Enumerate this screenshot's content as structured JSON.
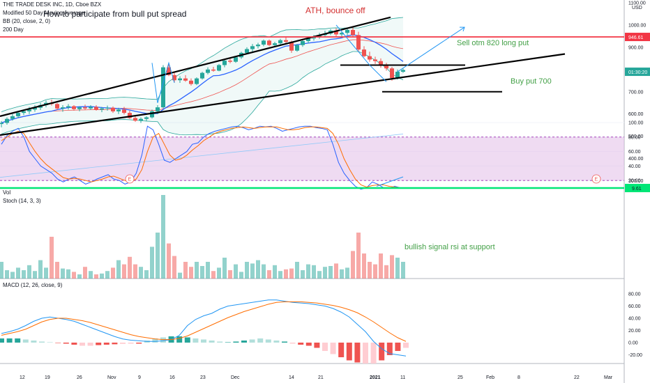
{
  "header": {
    "symbol": "THE TRADE DESK INC, 1D, Cboe BZX",
    "indicators": [
      "Modified 50 Day Moving Average",
      "BB (20, close, 2, 0)",
      "200 Day"
    ],
    "idea_title": "How to participate from bull put spread"
  },
  "axis": {
    "price_ticks": [
      "1100.00",
      "1000.00",
      "900.00",
      "800.00",
      "700.00",
      "600.00",
      "500.00",
      "400.00",
      "300.00"
    ],
    "currency": "USD",
    "last_price_label": "946.61",
    "countdown_label": "01:30:20",
    "stoch_ticks": [
      "100.00",
      "80.00",
      "60.00",
      "40.00",
      "20.00"
    ],
    "stoch_value_label": "9.61",
    "macd_ticks": [
      "80.00",
      "60.00",
      "40.00",
      "20.00",
      "0.00",
      "-20.00"
    ],
    "date_ticks": [
      "12",
      "19",
      "26",
      "Nov",
      "9",
      "16",
      "23",
      "Dec",
      "14",
      "21",
      "2021",
      "11",
      "25",
      "Feb",
      "8",
      "22",
      "Mar"
    ]
  },
  "panes": {
    "vol_label": "Vol",
    "stoch_label": "Stoch (14, 3, 3)",
    "macd_label": "MACD (12, 26, close, 9)"
  },
  "annotations": {
    "ath": "ATH, bounce off",
    "sell": "Sell otm 820 long put",
    "buy": "Buy put 700",
    "bullish": "bullish signal rsi at support",
    "earnings_marker": "E"
  },
  "colors": {
    "up": "#26a69a",
    "down": "#ef5350",
    "ath_text": "#d32f2f",
    "note_green": "#43a047",
    "resistance": "#f23645",
    "stoch_band": "#e1bee7",
    "support_green": "#00e676",
    "projection_blue": "#2196f3"
  },
  "chart_data": {
    "type": "candlestick",
    "symbol": "TTD",
    "interval": "1D",
    "price_axis": {
      "ylim": [
        270,
        1110
      ],
      "ticks": [
        300,
        400,
        500,
        600,
        700,
        800,
        900,
        1000,
        1100
      ]
    },
    "candles": [
      [
        555,
        568,
        540,
        560
      ],
      [
        560,
        585,
        552,
        578
      ],
      [
        578,
        600,
        570,
        590
      ],
      [
        590,
        612,
        582,
        605
      ],
      [
        605,
        620,
        595,
        612
      ],
      [
        612,
        632,
        600,
        620
      ],
      [
        620,
        640,
        610,
        628
      ],
      [
        628,
        650,
        618,
        640
      ],
      [
        640,
        660,
        630,
        650
      ],
      [
        650,
        665,
        638,
        645
      ],
      [
        645,
        650,
        618,
        625
      ],
      [
        625,
        640,
        610,
        630
      ],
      [
        630,
        645,
        620,
        635
      ],
      [
        635,
        640,
        615,
        622
      ],
      [
        622,
        635,
        612,
        630
      ],
      [
        630,
        642,
        620,
        625
      ],
      [
        625,
        640,
        618,
        632
      ],
      [
        632,
        640,
        615,
        620
      ],
      [
        620,
        632,
        608,
        625
      ],
      [
        625,
        638,
        615,
        628
      ],
      [
        628,
        634,
        605,
        612
      ],
      [
        612,
        628,
        600,
        620
      ],
      [
        620,
        632,
        598,
        605
      ],
      [
        605,
        615,
        578,
        582
      ],
      [
        582,
        592,
        565,
        570
      ],
      [
        570,
        585,
        560,
        578
      ],
      [
        578,
        590,
        568,
        585
      ],
      [
        585,
        620,
        580,
        612
      ],
      [
        612,
        640,
        600,
        630
      ],
      [
        630,
        820,
        625,
        810
      ],
      [
        810,
        830,
        770,
        775
      ],
      [
        775,
        790,
        740,
        752
      ],
      [
        752,
        770,
        740,
        760
      ],
      [
        760,
        775,
        745,
        750
      ],
      [
        750,
        760,
        728,
        735
      ],
      [
        735,
        765,
        730,
        760
      ],
      [
        760,
        790,
        755,
        785
      ],
      [
        785,
        810,
        778,
        800
      ],
      [
        800,
        812,
        790,
        795
      ],
      [
        795,
        825,
        792,
        820
      ],
      [
        820,
        845,
        810,
        840
      ],
      [
        840,
        852,
        828,
        835
      ],
      [
        835,
        860,
        830,
        855
      ],
      [
        855,
        880,
        848,
        875
      ],
      [
        875,
        900,
        868,
        892
      ],
      [
        892,
        915,
        880,
        905
      ],
      [
        905,
        920,
        895,
        912
      ],
      [
        912,
        935,
        905,
        930
      ],
      [
        930,
        935,
        905,
        910
      ],
      [
        910,
        925,
        900,
        918
      ],
      [
        918,
        938,
        910,
        932
      ],
      [
        932,
        945,
        918,
        925
      ],
      [
        925,
        930,
        875,
        885
      ],
      [
        885,
        915,
        880,
        910
      ],
      [
        910,
        935,
        902,
        928
      ],
      [
        928,
        945,
        918,
        940
      ],
      [
        940,
        955,
        930,
        945
      ],
      [
        945,
        965,
        938,
        955
      ],
      [
        955,
        975,
        948,
        962
      ],
      [
        962,
        982,
        955,
        975
      ],
      [
        975,
        985,
        950,
        958
      ],
      [
        958,
        970,
        945,
        965
      ],
      [
        965,
        985,
        955,
        978
      ],
      [
        978,
        990,
        948,
        955
      ],
      [
        955,
        970,
        880,
        890
      ],
      [
        890,
        905,
        855,
        860
      ],
      [
        860,
        880,
        835,
        845
      ],
      [
        845,
        858,
        825,
        838
      ],
      [
        838,
        850,
        808,
        818
      ],
      [
        818,
        830,
        795,
        805
      ],
      [
        805,
        812,
        750,
        762
      ],
      [
        762,
        800,
        755,
        790
      ],
      [
        790,
        805,
        785,
        798
      ]
    ],
    "volume_relative": [
      0.2,
      0.1,
      0.08,
      0.13,
      0.1,
      0.16,
      0.09,
      0.22,
      0.13,
      0.5,
      0.2,
      0.12,
      0.11,
      0.08,
      0.05,
      0.14,
      0.09,
      0.05,
      0.06,
      0.09,
      0.13,
      0.22,
      0.17,
      0.26,
      0.17,
      0.14,
      0.1,
      0.38,
      0.55,
      1,
      0.42,
      0.27,
      0.07,
      0.2,
      0.14,
      0.2,
      0.15,
      0.2,
      0.09,
      0.13,
      0.25,
      0.1,
      0.17,
      0.08,
      0.2,
      0.18,
      0.22,
      0.17,
      0.1,
      0.16,
      0.09,
      0.11,
      0.12,
      0.2,
      0.1,
      0.17,
      0.16,
      0.09,
      0.14,
      0.15,
      0.18,
      0.11,
      0.13,
      0.33,
      0.55,
      0.3,
      0.2,
      0.17,
      0.3,
      0.16,
      0.28,
      0.25,
      0.2
    ],
    "stochastic": {
      "k": [
        70,
        82,
        88,
        92,
        80,
        60,
        50,
        40,
        35,
        30,
        22,
        18,
        22,
        25,
        20,
        15,
        18,
        22,
        25,
        28,
        22,
        20,
        15,
        18,
        30,
        55,
        95,
        90,
        70,
        48,
        45,
        50,
        55,
        60,
        70,
        72,
        80,
        85,
        88,
        90,
        92,
        94,
        95,
        93,
        90,
        92,
        95,
        94,
        95,
        92,
        88,
        90,
        92,
        94,
        95,
        95,
        93,
        92,
        90,
        70,
        45,
        30,
        20,
        12,
        8,
        10,
        18,
        15,
        10,
        9,
        12,
        10,
        9.61
      ],
      "d": [
        75,
        80,
        85,
        88,
        85,
        72,
        60,
        50,
        42,
        36,
        30,
        24,
        22,
        23,
        22,
        20,
        18,
        20,
        22,
        25,
        26,
        23,
        20,
        18,
        22,
        35,
        60,
        80,
        85,
        70,
        55,
        48,
        50,
        55,
        62,
        68,
        75,
        80,
        85,
        88,
        90,
        92,
        93,
        94,
        93,
        92,
        93,
        94,
        94,
        94,
        92,
        90,
        90,
        91,
        93,
        94,
        94,
        93,
        92,
        85,
        70,
        50,
        35,
        22,
        14,
        11,
        13,
        14,
        14,
        12,
        11,
        10,
        10
      ]
    },
    "macd": {
      "macd": [
        15,
        18,
        22,
        28,
        35,
        40,
        42,
        40,
        38,
        35,
        30,
        25,
        20,
        15,
        10,
        6,
        4,
        3,
        2,
        2,
        3,
        5,
        12,
        28,
        38,
        44,
        48,
        55,
        60,
        62,
        64,
        66,
        68,
        70,
        70,
        68,
        66,
        65,
        64,
        62,
        60,
        56,
        50,
        42,
        30,
        18,
        2,
        -10,
        -18,
        -20,
        -22
      ],
      "signal": [
        12,
        15,
        18,
        22,
        28,
        34,
        38,
        40,
        40,
        38,
        36,
        33,
        29,
        25,
        21,
        17,
        13,
        10,
        8,
        6,
        5,
        5,
        7,
        11,
        17,
        23,
        29,
        35,
        41,
        46,
        51,
        55,
        59,
        63,
        66,
        67,
        67,
        67,
        66,
        65,
        63,
        61,
        58,
        54,
        49,
        42,
        34,
        25,
        16,
        8,
        2
      ],
      "histogram": [
        0.2,
        0.2,
        0.2,
        0.15,
        0.1,
        0.05,
        0.02,
        -0.02,
        -0.05,
        -0.1,
        -0.15,
        -0.15,
        -0.12,
        -0.1,
        -0.08,
        -0.06,
        -0.05,
        -0.05,
        0.1,
        0.2,
        0.25,
        0.3,
        0.3,
        0.25,
        0.2,
        0.15,
        0.1,
        0.05,
        0.02,
        0.05,
        0.1,
        0.15,
        0.2,
        0.15,
        0.1,
        0.05,
        -0.05,
        -0.1,
        -0.15,
        -0.25,
        -0.4,
        -0.55,
        -0.7,
        -0.85,
        -0.95,
        -1,
        -1,
        -0.85,
        -0.6,
        -0.4,
        -0.25
      ]
    },
    "levels": {
      "resistance": 946.61,
      "short_put_strike": 820,
      "long_put_strike": 700
    }
  }
}
